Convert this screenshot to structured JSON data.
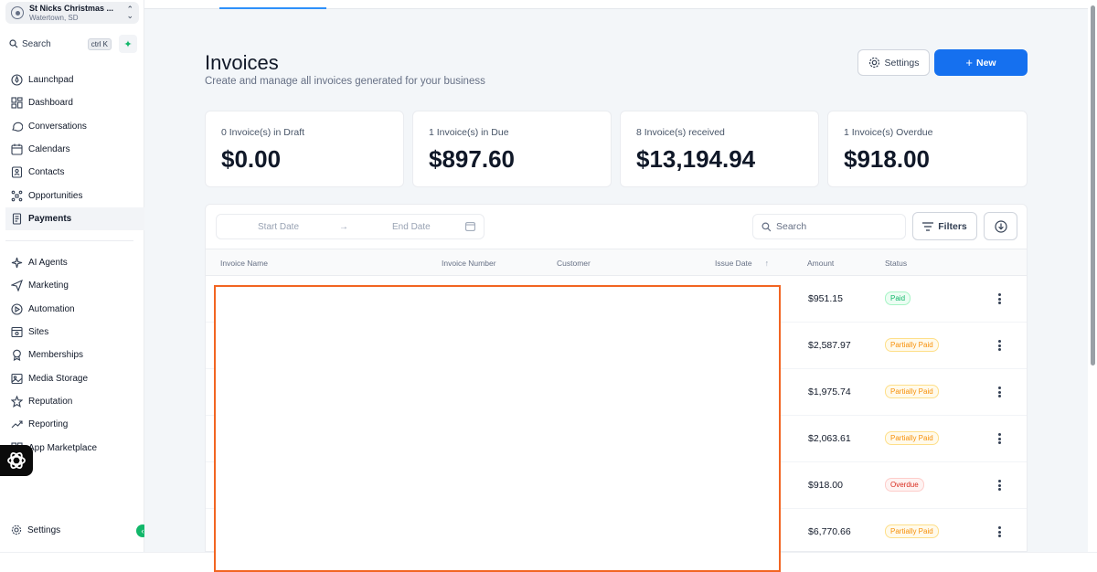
{
  "location": {
    "name": "St Nicks Christmas ...",
    "city": "Watertown, SD"
  },
  "search": {
    "label": "Search",
    "shortcut": "ctrl K"
  },
  "nav_group_1": [
    {
      "label": "Launchpad",
      "icon": "rocket-icon"
    },
    {
      "label": "Dashboard",
      "icon": "grid-icon"
    },
    {
      "label": "Conversations",
      "icon": "chat-icon"
    },
    {
      "label": "Calendars",
      "icon": "calendar-icon"
    },
    {
      "label": "Contacts",
      "icon": "contacts-icon"
    },
    {
      "label": "Opportunities",
      "icon": "opportunities-icon"
    },
    {
      "label": "Payments",
      "icon": "payments-icon"
    }
  ],
  "nav_group_2": [
    {
      "label": "AI Agents",
      "icon": "sparkle-icon"
    },
    {
      "label": "Marketing",
      "icon": "send-icon"
    },
    {
      "label": "Automation",
      "icon": "automation-icon"
    },
    {
      "label": "Sites",
      "icon": "sites-icon"
    },
    {
      "label": "Memberships",
      "icon": "award-icon"
    },
    {
      "label": "Media Storage",
      "icon": "image-icon"
    },
    {
      "label": "Reputation",
      "icon": "star-icon"
    },
    {
      "label": "Reporting",
      "icon": "trend-icon"
    },
    {
      "label": "App Marketplace",
      "icon": "apps-icon"
    }
  ],
  "sidebar_settings": "Settings",
  "header": {
    "title": "Invoices",
    "subtitle": "Create and manage all invoices generated for your business",
    "settings_label": "Settings",
    "new_label": "New"
  },
  "stats": [
    {
      "label": "0 Invoice(s) in Draft",
      "value": "$0.00"
    },
    {
      "label": "1 Invoice(s) in Due",
      "value": "$897.60"
    },
    {
      "label": "8 Invoice(s) received",
      "value": "$13,194.94"
    },
    {
      "label": "1 Invoice(s) Overdue",
      "value": "$918.00"
    }
  ],
  "toolbar": {
    "start_date": "Start Date",
    "end_date": "End Date",
    "search_placeholder": "Search",
    "filters_label": "Filters"
  },
  "columns": {
    "invoice_name": "Invoice Name",
    "invoice_number": "Invoice Number",
    "customer": "Customer",
    "issue_date": "Issue Date",
    "amount": "Amount",
    "status": "Status"
  },
  "rows": [
    {
      "amount": "$951.15",
      "status": "Paid",
      "status_type": "paid"
    },
    {
      "amount": "$2,587.97",
      "status": "Partially Paid",
      "status_type": "partial"
    },
    {
      "amount": "$1,975.74",
      "status": "Partially Paid",
      "status_type": "partial"
    },
    {
      "amount": "$2,063.61",
      "status": "Partially Paid",
      "status_type": "partial"
    },
    {
      "amount": "$918.00",
      "status": "Overdue",
      "status_type": "overdue"
    },
    {
      "amount": "$6,770.66",
      "status": "Partially Paid",
      "status_type": "partial"
    }
  ],
  "colors": {
    "primary": "#1570ef",
    "redaction_border": "#f26522",
    "paid": "#12b76a",
    "partial": "#f79009",
    "overdue": "#d92d20"
  }
}
